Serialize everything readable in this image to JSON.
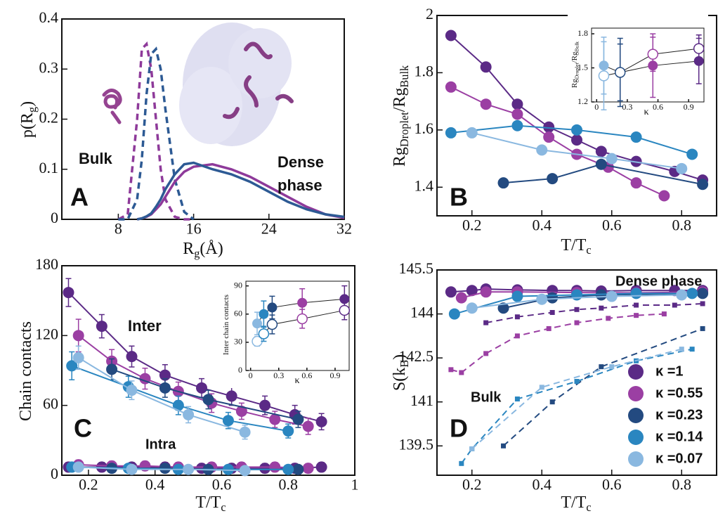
{
  "chart_data": [
    {
      "type": "line",
      "x_label": [
        "R",
        "g",
        "(Å)"
      ],
      "y_label": [
        "p(R",
        "g",
        ")"
      ],
      "x": [
        8,
        9,
        10,
        10.5,
        11,
        11.5,
        12,
        12.5,
        13,
        14,
        15,
        16,
        18,
        20,
        22,
        24,
        26,
        28,
        30,
        32
      ],
      "xlim": [
        2,
        32
      ],
      "xticks": [
        8,
        16,
        24,
        32
      ],
      "ylim": [
        0,
        0.4
      ],
      "yticks": [
        0,
        0.1,
        0.2,
        0.3,
        0.4
      ],
      "annotations": [
        "Bulk",
        "Dense",
        "phase",
        "A"
      ],
      "series": [
        {
          "color": "#8e3a9a",
          "dash": true,
          "values": [
            0,
            0.01,
            0.2,
            0.34,
            0.35,
            0.3,
            0.2,
            0.1,
            0.04,
            0.005,
            0,
            0,
            null,
            null,
            null,
            null,
            null,
            null,
            null,
            null
          ]
        },
        {
          "color": "#2d5a94",
          "dash": true,
          "values": [
            0,
            0,
            0.04,
            0.12,
            0.25,
            0.33,
            0.34,
            0.3,
            0.22,
            0.08,
            0.015,
            0,
            null,
            null,
            null,
            null,
            null,
            null,
            null,
            null
          ]
        },
        {
          "color": "#8e3a9a",
          "values": [
            null,
            null,
            0,
            0.002,
            0.005,
            0.01,
            0.02,
            0.03,
            0.045,
            0.075,
            0.095,
            0.105,
            0.11,
            0.1,
            0.085,
            0.065,
            0.045,
            0.025,
            0.01,
            0.003
          ]
        },
        {
          "color": "#2d5a94",
          "values": [
            null,
            null,
            0,
            0.002,
            0.006,
            0.012,
            0.025,
            0.04,
            0.06,
            0.09,
            0.11,
            0.113,
            0.1,
            0.09,
            0.075,
            0.055,
            0.035,
            0.02,
            0.01,
            0.005
          ]
        }
      ]
    },
    {
      "type": "line",
      "x_label": [
        "T/T",
        "c"
      ],
      "y_label": [
        "Rg",
        "Droplet",
        "/Rg",
        "Bulk"
      ],
      "xlim": [
        0.1,
        0.9
      ],
      "xticks": [
        0.2,
        0.4,
        0.6,
        0.8
      ],
      "ylim": [
        1.3,
        2.0
      ],
      "yticks": [
        1.4,
        1.6,
        1.8,
        2
      ],
      "annotations": [
        "B"
      ],
      "series": [
        {
          "color": "#5b2a86",
          "marker": "circle",
          "x": [
            0.14,
            0.24,
            0.33,
            0.42,
            0.5,
            0.57,
            0.67,
            0.78,
            0.86
          ],
          "values": [
            1.93,
            1.82,
            1.69,
            1.61,
            1.565,
            1.525,
            1.49,
            1.455,
            1.425
          ]
        },
        {
          "color": "#9b3fa3",
          "marker": "circle",
          "x": [
            0.14,
            0.24,
            0.33,
            0.42,
            0.5,
            0.59,
            0.67,
            0.75
          ],
          "values": [
            1.75,
            1.69,
            1.655,
            1.575,
            1.515,
            1.47,
            1.415,
            1.37
          ]
        },
        {
          "color": "#234a80",
          "marker": "circle",
          "x": [
            0.29,
            0.43,
            0.57,
            0.86
          ],
          "values": [
            1.415,
            1.43,
            1.48,
            1.41
          ]
        },
        {
          "color": "#2a86c0",
          "marker": "circle",
          "x": [
            0.14,
            0.33,
            0.5,
            0.67,
            0.83
          ],
          "values": [
            1.59,
            1.615,
            1.6,
            1.575,
            1.515
          ]
        },
        {
          "color": "#8ab8e0",
          "marker": "circle",
          "x": [
            0.2,
            0.4,
            0.6,
            0.8
          ],
          "values": [
            1.59,
            1.53,
            1.5,
            1.465
          ]
        }
      ]
    },
    {
      "type": "line",
      "x_label": [
        "κ"
      ],
      "y_label": [
        "Rg",
        "Droplet",
        "/Rg",
        "Bulk"
      ],
      "xlim": [
        -0.05,
        1.05
      ],
      "xticks": [
        0,
        0.3,
        0.6,
        0.9
      ],
      "ylim": [
        1.2,
        1.85
      ],
      "yticks": [
        1.2,
        1.5,
        1.8
      ],
      "series": [
        {
          "color": "#222222",
          "marker": "circle",
          "colors": [
            "#8ab8e0",
            "#234a80",
            "#9b3fa3",
            "#5b2a86"
          ],
          "x": [
            0.07,
            0.23,
            0.55,
            1
          ],
          "values": [
            1.52,
            1.46,
            1.52,
            1.56
          ],
          "errors": [
            0.25,
            0.25,
            0.28,
            0.2
          ]
        },
        {
          "color": "#222222",
          "marker": "circle",
          "open": true,
          "colors": [
            "#8ab8e0",
            "#234a80",
            "#9b3fa3",
            "#5b2a86"
          ],
          "x": [
            0.07,
            0.23,
            0.55,
            1
          ],
          "values": [
            1.43,
            1.46,
            1.62,
            1.67
          ],
          "errors": [
            0.3,
            0.3,
            0.15,
            0.12
          ]
        }
      ]
    },
    {
      "type": "line",
      "x_label": [
        "T/T",
        "c"
      ],
      "y_label": [
        "Chain contacts"
      ],
      "xlim": [
        0.12,
        1.0
      ],
      "xticks": [
        0.2,
        0.4,
        0.6,
        0.8,
        1
      ],
      "ylim": [
        0,
        180
      ],
      "yticks": [
        0,
        60,
        120,
        180
      ],
      "annotations": [
        "Inter",
        "Intra",
        "C"
      ],
      "series": [
        {
          "color": "#5b2a86",
          "marker": "circle",
          "x": [
            0.14,
            0.24,
            0.33,
            0.43,
            0.54,
            0.63,
            0.73,
            0.82,
            0.9
          ],
          "values": [
            157,
            128,
            102,
            86,
            75,
            68,
            60,
            52,
            46
          ],
          "errors": [
            12,
            10,
            9,
            9,
            8,
            8,
            8,
            8,
            7
          ]
        },
        {
          "color": "#9b3fa3",
          "marker": "circle",
          "x": [
            0.17,
            0.27,
            0.37,
            0.47,
            0.57,
            0.66,
            0.76,
            0.86
          ],
          "values": [
            120,
            98,
            83,
            72,
            62,
            55,
            48,
            42
          ],
          "errors": [
            14,
            10,
            9,
            8,
            8,
            7,
            7,
            7
          ]
        },
        {
          "color": "#234a80",
          "marker": "circle",
          "x": [
            0.27,
            0.43,
            0.56,
            0.83
          ],
          "values": [
            91,
            75,
            65,
            48
          ],
          "errors": [
            9,
            8,
            8,
            7
          ]
        },
        {
          "color": "#2a86c0",
          "marker": "circle",
          "x": [
            0.15,
            0.32,
            0.47,
            0.62,
            0.8
          ],
          "values": [
            94,
            76,
            60,
            47,
            38
          ],
          "errors": [
            12,
            9,
            8,
            7,
            6
          ]
        },
        {
          "color": "#8ab8e0",
          "marker": "circle",
          "x": [
            0.17,
            0.33,
            0.5,
            0.67
          ],
          "values": [
            101,
            73,
            52,
            37
          ],
          "errors": [
            10,
            8,
            7,
            6
          ]
        },
        {
          "color": "#5b2a86",
          "marker": "circle",
          "x": [
            0.14,
            0.24,
            0.33,
            0.43,
            0.54,
            0.63,
            0.73,
            0.82,
            0.9
          ],
          "values": [
            7,
            7,
            7,
            7,
            6,
            6,
            6,
            6,
            7
          ],
          "errors": [
            4,
            4,
            4,
            4,
            4,
            4,
            4,
            4,
            4
          ]
        },
        {
          "color": "#9b3fa3",
          "marker": "circle",
          "x": [
            0.17,
            0.27,
            0.37,
            0.47,
            0.57,
            0.66,
            0.76,
            0.86
          ],
          "values": [
            9,
            8,
            8,
            7,
            7,
            7,
            7,
            6
          ],
          "errors": [
            4,
            4,
            4,
            4,
            4,
            4,
            4,
            4
          ]
        },
        {
          "color": "#234a80",
          "marker": "circle",
          "x": [
            0.27,
            0.43,
            0.56,
            0.83
          ],
          "values": [
            6,
            6,
            5,
            5
          ],
          "errors": [
            3,
            3,
            3,
            3
          ]
        },
        {
          "color": "#2a86c0",
          "marker": "circle",
          "x": [
            0.15,
            0.32,
            0.47,
            0.62,
            0.8
          ],
          "values": [
            7,
            6,
            5,
            5,
            5
          ],
          "errors": [
            3,
            3,
            3,
            3,
            3
          ]
        },
        {
          "color": "#8ab8e0",
          "marker": "circle",
          "x": [
            0.17,
            0.33,
            0.5,
            0.67
          ],
          "values": [
            7,
            5,
            5,
            4
          ],
          "errors": [
            3,
            3,
            3,
            3
          ]
        }
      ]
    },
    {
      "type": "line",
      "x_label": [
        "κ"
      ],
      "y_label": [
        "Inter chain contacts"
      ],
      "xlim": [
        -0.05,
        1.05
      ],
      "xticks": [
        0,
        0.3,
        0.6,
        0.9
      ],
      "ylim": [
        0,
        95
      ],
      "yticks": [
        0,
        30,
        60,
        90
      ],
      "series": [
        {
          "color": "#222222",
          "marker": "circle",
          "colors": [
            "#8ab8e0",
            "#2a86c0",
            "#234a80",
            "#9b3fa3",
            "#5b2a86"
          ],
          "x": [
            0.07,
            0.14,
            0.23,
            0.55,
            1
          ],
          "values": [
            50,
            60,
            67,
            72,
            76
          ],
          "errors": [
            12,
            14,
            12,
            15,
            14
          ]
        },
        {
          "color": "#222222",
          "marker": "circle",
          "open": true,
          "colors": [
            "#8ab8e0",
            "#2a86c0",
            "#234a80",
            "#9b3fa3",
            "#5b2a86"
          ],
          "x": [
            0.07,
            0.14,
            0.23,
            0.55,
            1
          ],
          "values": [
            31,
            39,
            49,
            55,
            64
          ],
          "errors": [
            5,
            8,
            10,
            10,
            10
          ]
        }
      ]
    },
    {
      "type": "line",
      "x_label": [
        "T/T",
        "c"
      ],
      "y_label": [
        "S(k",
        "B",
        ")"
      ],
      "xlim": [
        0.1,
        0.9
      ],
      "xticks": [
        0.2,
        0.4,
        0.6,
        0.8
      ],
      "ylim": [
        138.5,
        145.5
      ],
      "yticks": [
        139.5,
        141,
        142.5,
        144,
        145.5
      ],
      "annotations": [
        "Dense phase",
        "Bulk",
        "D"
      ],
      "legend": true,
      "series": [
        {
          "name": "κ =1",
          "color": "#5b2a86",
          "marker": "circle",
          "x": [
            0.14,
            0.2,
            0.24,
            0.33,
            0.43,
            0.5,
            0.57,
            0.67,
            0.78,
            0.86
          ],
          "values": [
            144.75,
            144.8,
            144.85,
            144.82,
            144.8,
            144.8,
            144.78,
            144.8,
            144.8,
            144.8
          ]
        },
        {
          "name": "κ =0.55",
          "color": "#9b3fa3",
          "marker": "circle",
          "x": [
            0.17,
            0.24,
            0.33,
            0.5,
            0.67,
            0.86
          ],
          "values": [
            144.55,
            144.75,
            144.75,
            144.73,
            144.72,
            144.75
          ]
        },
        {
          "name": "κ =0.23",
          "color": "#234a80",
          "marker": "circle",
          "x": [
            0.29,
            0.43,
            0.57,
            0.86
          ],
          "values": [
            144.2,
            144.55,
            144.65,
            144.7
          ]
        },
        {
          "name": "κ =0.14",
          "color": "#2a86c0",
          "marker": "circle",
          "x": [
            0.15,
            0.33,
            0.5,
            0.67,
            0.83
          ],
          "values": [
            144.0,
            144.6,
            144.65,
            144.7,
            144.7
          ]
        },
        {
          "name": "κ =0.07",
          "color": "#8ab8e0",
          "marker": "circle",
          "x": [
            0.2,
            0.4,
            0.6,
            0.8
          ],
          "values": [
            144.2,
            144.5,
            144.6,
            144.65
          ]
        },
        {
          "color": "#5b2a86",
          "dash": true,
          "marker": "square",
          "x": [
            0.24,
            0.33,
            0.43,
            0.5,
            0.57,
            0.67,
            0.78,
            0.86
          ],
          "values": [
            143.7,
            143.9,
            144.05,
            144.15,
            144.2,
            144.3,
            144.3,
            144.35
          ]
        },
        {
          "color": "#9b3fa3",
          "dash": true,
          "marker": "square",
          "x": [
            0.14,
            0.17,
            0.24,
            0.33,
            0.42,
            0.5,
            0.59,
            0.67,
            0.75
          ],
          "values": [
            142.1,
            142.0,
            142.65,
            143.25,
            143.5,
            143.7,
            143.85,
            143.95,
            144.0
          ]
        },
        {
          "color": "#234a80",
          "dash": true,
          "marker": "square",
          "x": [
            0.29,
            0.43,
            0.57,
            0.86
          ],
          "values": [
            139.5,
            141.0,
            142.2,
            143.5
          ]
        },
        {
          "color": "#2a86c0",
          "dash": true,
          "marker": "square",
          "x": [
            0.17,
            0.2,
            0.33,
            0.5,
            0.67,
            0.83
          ],
          "values": [
            138.9,
            139.4,
            141.1,
            141.7,
            142.4,
            142.8
          ]
        },
        {
          "color": "#8ab8e0",
          "dash": true,
          "marker": "square",
          "x": [
            0.2,
            0.4,
            0.6,
            0.8
          ],
          "values": [
            139.4,
            141.5,
            142.2,
            142.8
          ]
        }
      ]
    }
  ]
}
